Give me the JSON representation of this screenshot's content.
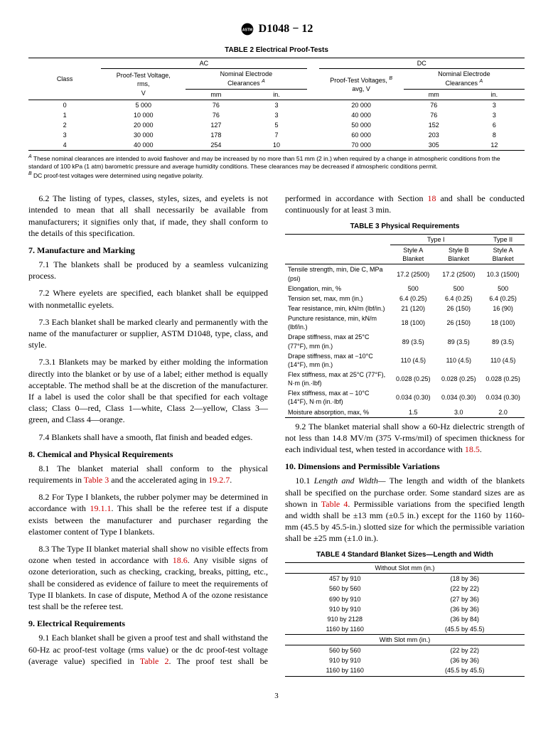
{
  "doc_header": "D1048 − 12",
  "page_number": "3",
  "table2": {
    "title": "TABLE 2 Electrical Proof-Tests",
    "footnotes": {
      "A": "These nominal clearances are intended to avoid flashover and may be increased by no more than 51 mm (2 in.) when required by a change in atmospheric conditions from the standard of 100 kPa (1 atm) barometric pressure and average humidity conditions. These clearances may be decreased if atmospheric conditions permit.",
      "B": "DC proof-test voltages were determined using negative polarity."
    },
    "head": {
      "class": "Class",
      "ac": "AC",
      "dc": "DC",
      "ac_volt": "Proof-Test Voltage,\nrms,\nV",
      "ac_clear": "Nominal Electrode\nClearances ",
      "dc_volt": "Proof-Test Voltages, \navg, V",
      "dc_clear": "Nominal Electrode\nClearances ",
      "mm": "mm",
      "in": "in."
    },
    "rows": [
      {
        "class": "0",
        "ac_v": "5 000",
        "ac_mm": "76",
        "ac_in": "3",
        "dc_v": "20 000",
        "dc_mm": "76",
        "dc_in": "3"
      },
      {
        "class": "1",
        "ac_v": "10 000",
        "ac_mm": "76",
        "ac_in": "3",
        "dc_v": "40 000",
        "dc_mm": "76",
        "dc_in": "3"
      },
      {
        "class": "2",
        "ac_v": "20 000",
        "ac_mm": "127",
        "ac_in": "5",
        "dc_v": "50 000",
        "dc_mm": "152",
        "dc_in": "6"
      },
      {
        "class": "3",
        "ac_v": "30 000",
        "ac_mm": "178",
        "ac_in": "7",
        "dc_v": "60 000",
        "dc_mm": "203",
        "dc_in": "8"
      },
      {
        "class": "4",
        "ac_v": "40 000",
        "ac_mm": "254",
        "ac_in": "10",
        "dc_v": "70 000",
        "dc_mm": "305",
        "dc_in": "12"
      }
    ]
  },
  "table3": {
    "title": "TABLE 3 Physical Requirements",
    "head": {
      "t1": "Type I",
      "t2": "Type II",
      "sa": "Style A\nBlanket",
      "sb": "Style B\nBlanket",
      "sa2": "Style A\nBlanket"
    },
    "rows": [
      {
        "p": "Tensile strength, min, Die C, MPa (psi)",
        "a": "17.2 (2500)",
        "b": "17.2 (2500)",
        "c": "10.3 (1500)"
      },
      {
        "p": "Elongation, min, %",
        "a": "500",
        "b": "500",
        "c": "500"
      },
      {
        "p": "Tension set, max, mm (in.)",
        "a": "6.4 (0.25)",
        "b": "6.4 (0.25)",
        "c": "6.4 (0.25)"
      },
      {
        "p": "Tear resistance, min, kN/m (lbf/in.)",
        "a": "21 (120)",
        "b": "26 (150)",
        "c": "16 (90)"
      },
      {
        "p": "Puncture resistance, min, kN/m (lbf/in.)",
        "a": "18 (100)",
        "b": "26 (150)",
        "c": "18 (100)"
      },
      {
        "p": "Drape stiffness, max at 25°C (77°F), mm (in.)",
        "a": "89 (3.5)",
        "b": "89 (3.5)",
        "c": "89 (3.5)"
      },
      {
        "p": "Drape stiffness, max at −10°C (14°F), mm (in.)",
        "a": "110 (4.5)",
        "b": "110 (4.5)",
        "c": "110 (4.5)"
      },
      {
        "p": "Flex stiffness, max at 25°C (77°F), N·m (in.·lbf)",
        "a": "0.028 (0.25)",
        "b": "0.028 (0.25)",
        "c": "0.028 (0.25)"
      },
      {
        "p": "Flex stiffness, max at – 10°C (14°F), N·m (in.·lbf)",
        "a": "0.034 (0.30)",
        "b": "0.034 (0.30)",
        "c": "0.034 (0.30)"
      },
      {
        "p": "Moisture absorption, max, %",
        "a": "1.5",
        "b": "3.0",
        "c": "2.0"
      }
    ]
  },
  "table4": {
    "title": "TABLE 4 Standard Blanket Sizes—Length and Width",
    "h1": "Without Slot mm (in.)",
    "h2": "With Slot mm (in.)",
    "rows1": [
      {
        "m": "457 by 910",
        "i": "(18 by 36)"
      },
      {
        "m": "560 by 560",
        "i": "(22 by 22)"
      },
      {
        "m": "690 by 910",
        "i": "(27 by 36)"
      },
      {
        "m": "910 by 910",
        "i": "(36 by 36)"
      },
      {
        "m": "910 by 2128",
        "i": "(36 by 84)"
      },
      {
        "m": "1160 by 1160",
        "i": "(45.5 by 45.5)"
      }
    ],
    "rows2": [
      {
        "m": "560 by 560",
        "i": "(22 by 22)"
      },
      {
        "m": "910 by 910",
        "i": "(36 by 36)"
      },
      {
        "m": "1160 by 1160",
        "i": "(45.5 by 45.5)"
      }
    ]
  },
  "body": {
    "p6_2": "6.2 The listing of types, classes, styles, sizes, and eyelets is not intended to mean that all shall necessarily be available from manufacturers; it signifies only that, if made, they shall conform to the details of this specification.",
    "s7": "7. Manufacture and Marking",
    "p7_1": "7.1 The blankets shall be produced by a seamless vulcanizing process.",
    "p7_2": "7.2 Where eyelets are specified, each blanket shall be equipped with nonmetallic eyelets.",
    "p7_3": "7.3 Each blanket shall be marked clearly and permanently with the name of the manufacturer or supplier, ASTM D1048, type, class, and style.",
    "p7_3_1": "7.3.1 Blankets may be marked by either molding the information directly into the blanket or by use of a label; either method is equally acceptable. The method shall be at the discretion of the manufacturer. If a label is used the color shall be that specified for each voltage class; Class 0—red, Class 1—white, Class 2—yellow, Class 3—green, and Class 4—orange.",
    "p7_4": "7.4 Blankets shall have a smooth, flat finish and beaded edges.",
    "s8": "8. Chemical and Physical Requirements",
    "p8_1a": "8.1 The blanket material shall conform to the physical requirements in ",
    "l_t3": "Table 3",
    "p8_1b": " and the accelerated aging in ",
    "l_1927": "19.2.7",
    "p8_1c": ".",
    "p8_2a": "8.2 For Type I blankets, the rubber polymer may be determined in accordance with ",
    "l_1911": "19.1.1",
    "p8_2b": ". This shall be the referee test if a dispute exists between the manufacturer and purchaser regarding the elastomer content of Type I blankets.",
    "p8_3a": "8.3 The Type II blanket material shall show no visible effects from ozone when tested in accordance with ",
    "l_186": "18.6",
    "p8_3b": ". Any visible signs of ozone deterioration, such as checking, cracking, breaks, pitting, etc., shall be considered as evidence of failure to meet the requirements of Type II blankets. In case of dispute, Method A of the ozone resistance test shall be the referee test.",
    "s9": "9. Electrical Requirements",
    "p9_1a": "9.1 Each blanket shall be given a proof test and shall withstand the 60-Hz ac proof-test voltage (rms value) or the dc proof-test voltage (average value) specified in ",
    "l_t2": "Table 2",
    "p9_1b": ". The proof test shall be performed in accordance with Section ",
    "l_s18": "18",
    "p9_1c": " and shall be conducted continuously for at least 3 min.",
    "p9_2a": "9.2 The blanket material shall show a 60-Hz dielectric strength of not less than 14.8 MV/m (375 V-rms/mil) of specimen thickness for each individual test, when tested in accordance with ",
    "l_185": "18.5",
    "p9_2b": ".",
    "s10": "10. Dimensions and Permissible Variations",
    "p10_1a": "10.1 ",
    "p10_1em": "Length and Width—",
    "p10_1b": " The length and width of the blankets shall be specified on the purchase order. Some standard sizes are as shown in ",
    "l_t4": "Table 4",
    "p10_1c": ". Permissible variations from the specified length and width shall be ±13 mm (±0.5 in.) except for the 1160 by 1160-mm (45.5 by 45.5-in.) slotted size for which the permissible variation shall be ±25 mm (±1.0 in.)."
  }
}
